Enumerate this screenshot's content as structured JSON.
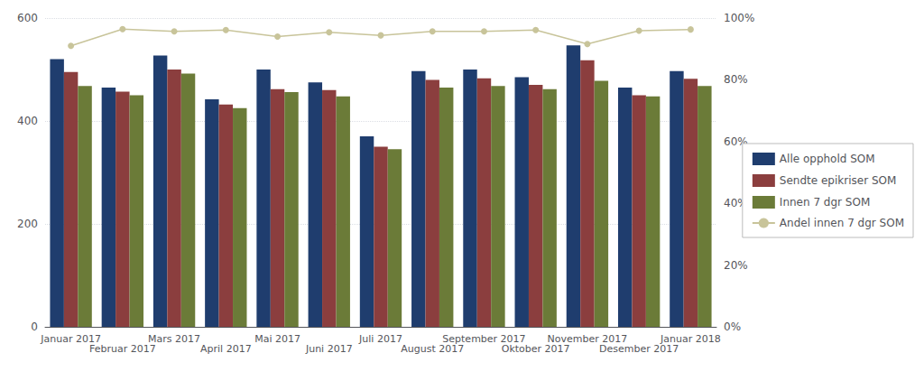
{
  "chart_data": {
    "type": "bar",
    "categories": [
      "Januar 2017",
      "Februar 2017",
      "Mars 2017",
      "April 2017",
      "Mai 2017",
      "Juni 2017",
      "Juli 2017",
      "August 2017",
      "September 2017",
      "Oktober 2017",
      "November 2017",
      "Desember 2017",
      "Januar 2018"
    ],
    "series": [
      {
        "name": "Alle opphold SOM",
        "type": "bar",
        "color": "#1f3d6e",
        "values": [
          520,
          465,
          527,
          442,
          500,
          475,
          370,
          497,
          500,
          485,
          547,
          465,
          497
        ]
      },
      {
        "name": "Sendte epikriser SOM",
        "type": "bar",
        "color": "#8b3e3e",
        "values": [
          495,
          457,
          500,
          432,
          462,
          460,
          350,
          480,
          483,
          470,
          518,
          450,
          482
        ]
      },
      {
        "name": "Innen 7 dgr SOM",
        "type": "bar",
        "color": "#6b7b38",
        "values": [
          468,
          450,
          492,
          425,
          456,
          448,
          345,
          465,
          468,
          462,
          478,
          448,
          468
        ]
      },
      {
        "name": "Andel innen 7 dgr SOM",
        "type": "line",
        "axis": "y2",
        "color": "#c8c49a",
        "marker": "circle",
        "line_style": "solid",
        "values": [
          0.91,
          0.964,
          0.957,
          0.961,
          0.94,
          0.954,
          0.944,
          0.957,
          0.957,
          0.961,
          0.916,
          0.959,
          0.963
        ]
      }
    ],
    "ylim": [
      0,
      600
    ],
    "yticks": [
      0,
      200,
      400,
      600
    ],
    "y2lim": [
      0,
      1.0
    ],
    "y2ticks": [
      {
        "value": 0.0,
        "label": "0%"
      },
      {
        "value": 0.2,
        "label": "20%"
      },
      {
        "value": 0.4,
        "label": "40%"
      },
      {
        "value": 0.6,
        "label": "60%"
      },
      {
        "value": 0.8,
        "label": "80%"
      },
      {
        "value": 1.0,
        "label": "100%"
      }
    ],
    "grid": true,
    "legend": "right"
  }
}
